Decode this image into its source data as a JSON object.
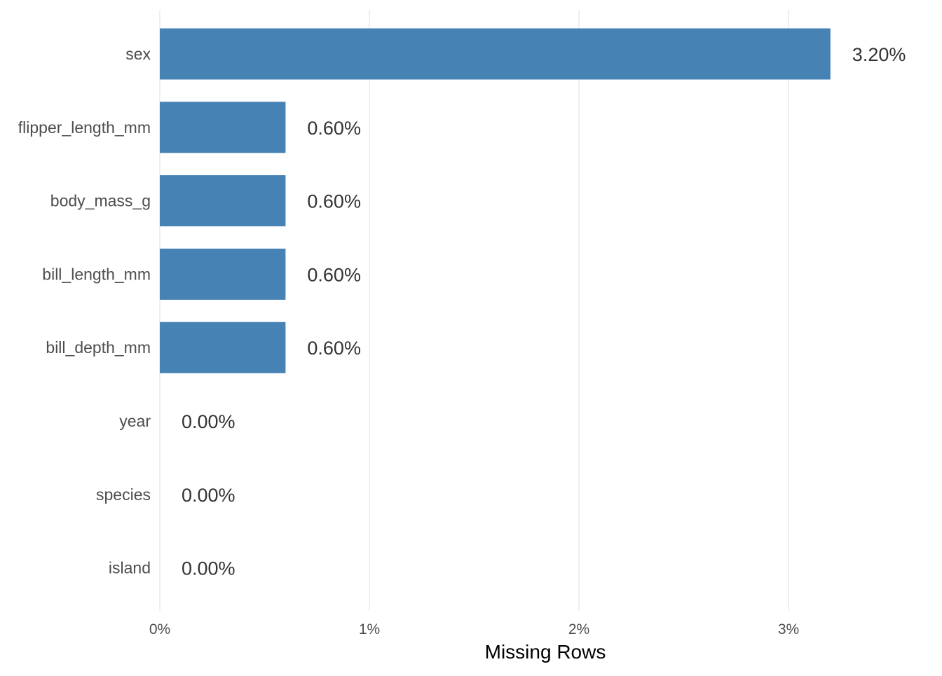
{
  "chart_data": {
    "type": "bar",
    "orientation": "horizontal",
    "categories": [
      "sex",
      "flipper_length_mm",
      "body_mass_g",
      "bill_length_mm",
      "bill_depth_mm",
      "year",
      "species",
      "island"
    ],
    "values": [
      3.2,
      0.6,
      0.6,
      0.6,
      0.6,
      0.0,
      0.0,
      0.0
    ],
    "value_labels": [
      "3.20%",
      "0.60%",
      "0.60%",
      "0.60%",
      "0.60%",
      "0.00%",
      "0.00%",
      "0.00%"
    ],
    "xlabel": "Missing Rows",
    "ylabel": "",
    "xticks": [
      0,
      1,
      2,
      3
    ],
    "xtick_labels": [
      "0%",
      "1%",
      "2%",
      "3%"
    ],
    "xlim": [
      0,
      3.45
    ],
    "grid": "vertical major",
    "legend": "none",
    "bar_color": "#4682B4"
  }
}
